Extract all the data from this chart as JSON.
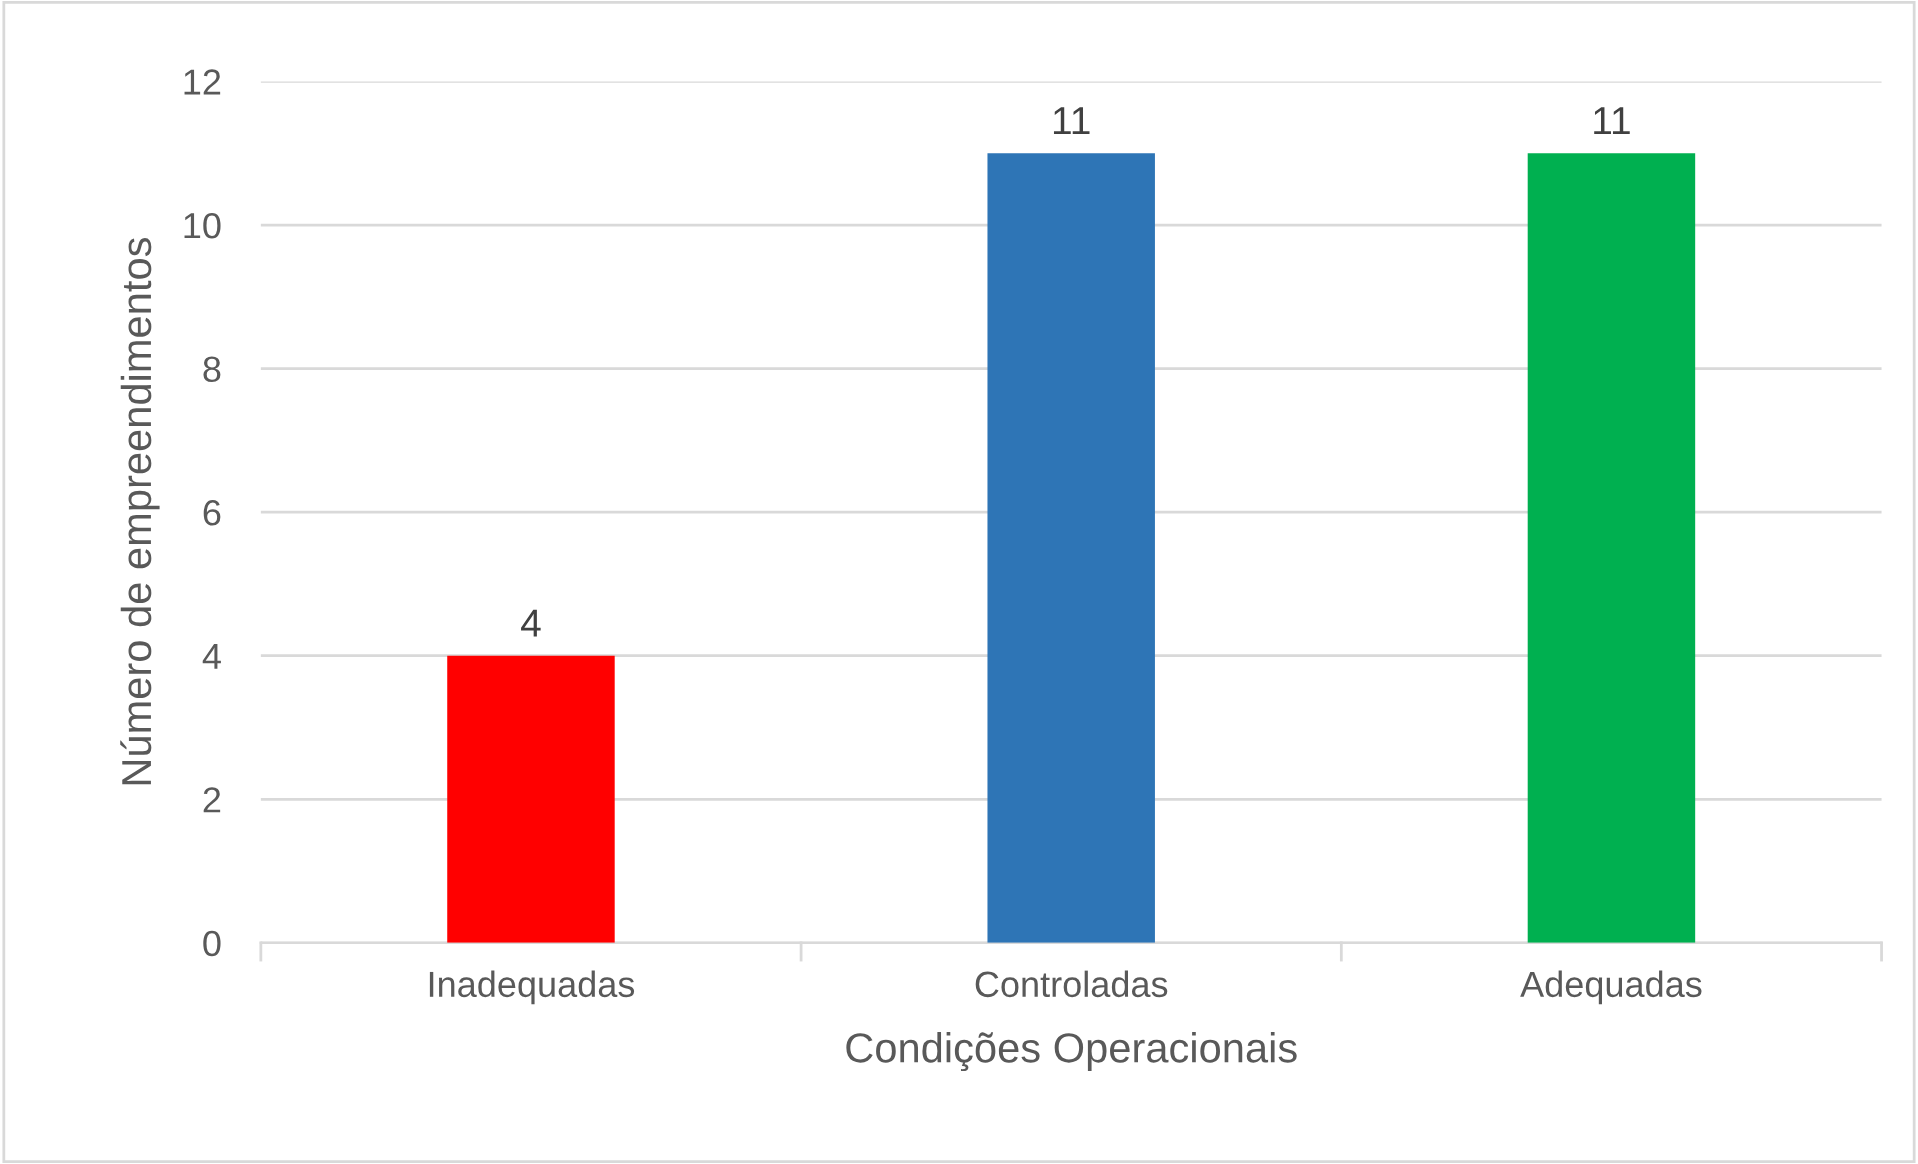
{
  "chart_data": {
    "type": "bar",
    "xlabel": "Condições Operacionais",
    "ylabel": "Número de empreendimentos",
    "categories": [
      "Inadequadas",
      "Controladas",
      "Adequadas"
    ],
    "values": [
      4,
      11,
      11
    ],
    "colors": [
      "#ff0000",
      "#2e75b6",
      "#00b050"
    ],
    "ylim": [
      0,
      12
    ],
    "yticks": [
      0,
      2,
      4,
      6,
      8,
      10,
      12
    ],
    "grid": "y",
    "data_labels": true,
    "legend": false
  }
}
